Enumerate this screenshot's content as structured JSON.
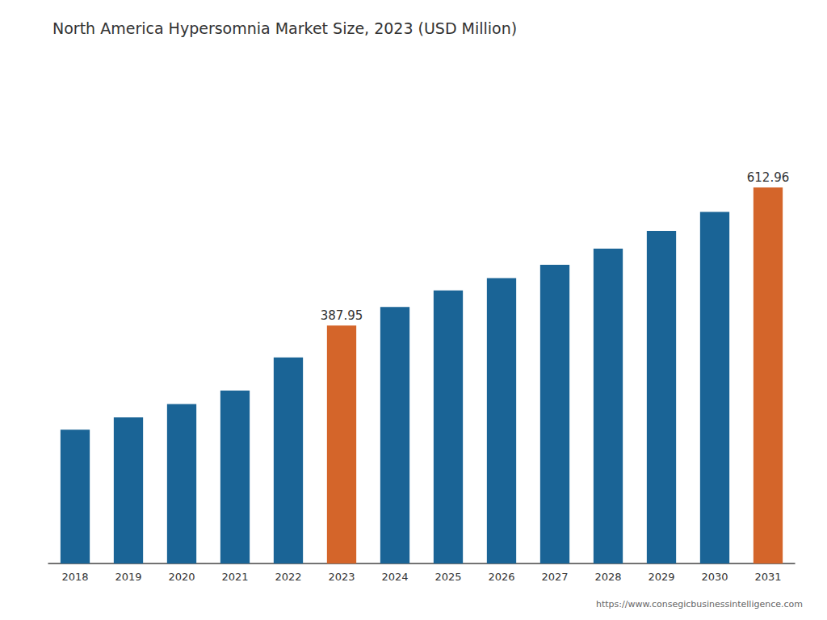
{
  "chart_data": {
    "type": "bar",
    "title": "North America Hypersomnia Market Size, 2023 (USD Million)",
    "categories": [
      "2018",
      "2019",
      "2020",
      "2021",
      "2022",
      "2023",
      "2024",
      "2025",
      "2026",
      "2027",
      "2028",
      "2029",
      "2030",
      "2031"
    ],
    "values": [
      218,
      238,
      260,
      282,
      336,
      387.95,
      418,
      445,
      465,
      487,
      513,
      542,
      573,
      612.96
    ],
    "colors": [
      "#1a6496",
      "#1a6496",
      "#1a6496",
      "#1a6496",
      "#1a6496",
      "#d4652a",
      "#1a6496",
      "#1a6496",
      "#1a6496",
      "#1a6496",
      "#1a6496",
      "#1a6496",
      "#1a6496",
      "#d4652a"
    ],
    "data_labels": true,
    "value_labels": [
      null,
      null,
      null,
      null,
      null,
      "387.95",
      null,
      null,
      null,
      null,
      null,
      null,
      null,
      "612.96"
    ],
    "ylim": [
      0,
      800
    ],
    "grid": false,
    "tick_labels": "x",
    "annotations": [
      "https://www.consegicbusinessintelligence.com"
    ]
  }
}
